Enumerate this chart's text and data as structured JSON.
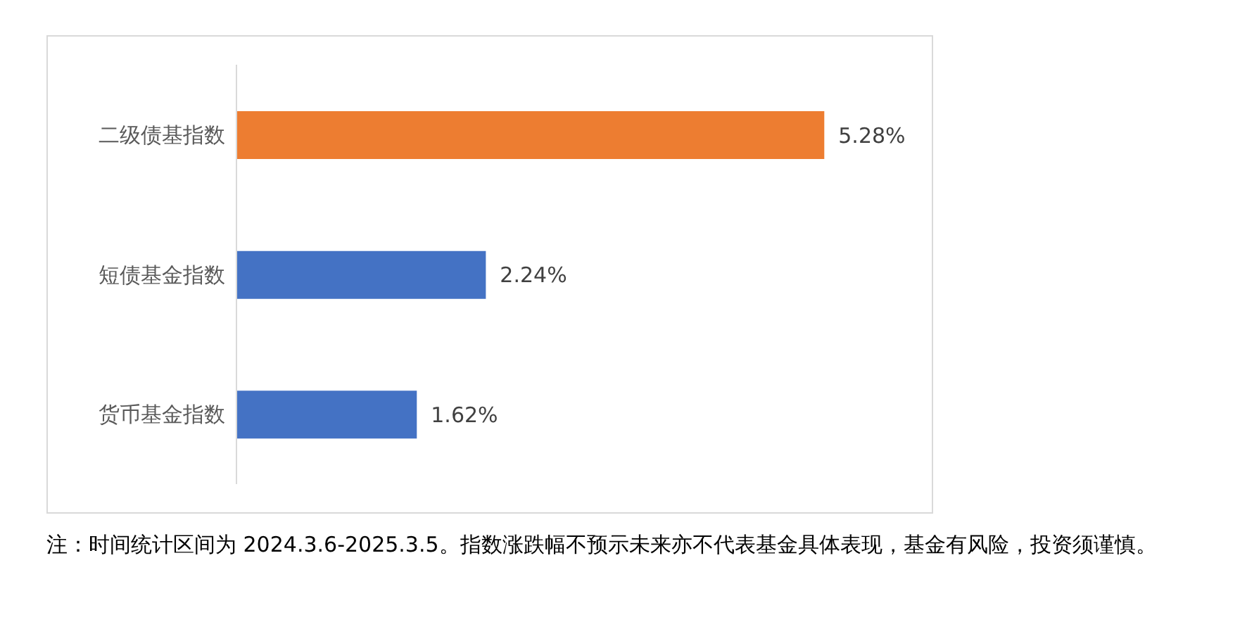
{
  "chart_data": {
    "type": "bar",
    "orientation": "horizontal",
    "categories": [
      "二级债基指数",
      "短债基金指数",
      "货币基金指数"
    ],
    "values": [
      5.28,
      2.24,
      1.62
    ],
    "colors": [
      "#ed7d31",
      "#4472c4",
      "#4472c4"
    ],
    "value_labels": [
      "5.28%",
      "2.24%",
      "1.62%"
    ],
    "grid": false,
    "legend": false,
    "annotations": [
      "注：时间统计区间为 2024.3.6-2025.3.5。指数涨跌幅不预示未来亦不代表基金具体表现，基金有风险，投资须谨慎。"
    ]
  }
}
